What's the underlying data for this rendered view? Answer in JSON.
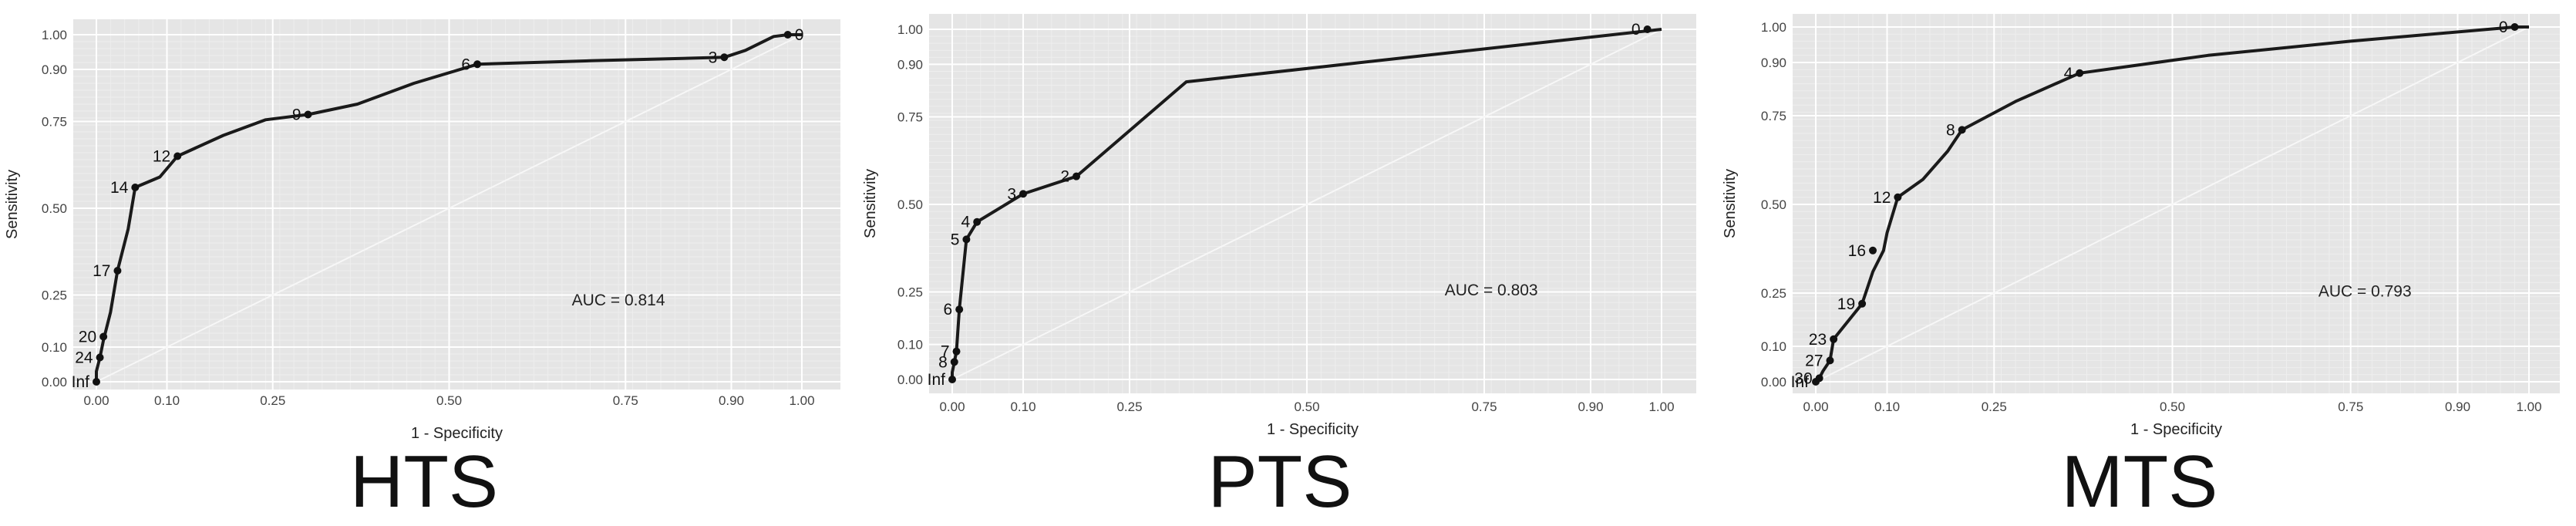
{
  "chart_data": [
    {
      "type": "line",
      "panel_title": "HTS",
      "xlabel": "1 - Specificity",
      "ylabel": "Sensitivity",
      "xlim": [
        0,
        1
      ],
      "ylim": [
        0,
        1
      ],
      "x_ticks": [
        "0.00",
        "0.10",
        "0.25",
        "0.50",
        "0.75",
        "0.90",
        "1.00"
      ],
      "y_ticks": [
        "0.00",
        "0.10",
        "0.25",
        "0.50",
        "0.75",
        "0.90",
        "1.00"
      ],
      "x_tick_values": [
        0,
        0.1,
        0.25,
        0.5,
        0.75,
        0.9,
        1
      ],
      "y_tick_values": [
        0,
        0.1,
        0.25,
        0.5,
        0.75,
        0.9,
        1
      ],
      "grid": true,
      "diagonal_reference": true,
      "annotation": "AUC = 0.814",
      "curve": [
        [
          0,
          0
        ],
        [
          0,
          0.03
        ],
        [
          0.005,
          0.07
        ],
        [
          0.01,
          0.12
        ],
        [
          0.02,
          0.2
        ],
        [
          0.03,
          0.32
        ],
        [
          0.045,
          0.44
        ],
        [
          0.055,
          0.56
        ],
        [
          0.09,
          0.59
        ],
        [
          0.115,
          0.65
        ],
        [
          0.18,
          0.71
        ],
        [
          0.24,
          0.755
        ],
        [
          0.3,
          0.77
        ],
        [
          0.37,
          0.8
        ],
        [
          0.45,
          0.86
        ],
        [
          0.54,
          0.915
        ],
        [
          0.7,
          0.925
        ],
        [
          0.89,
          0.935
        ],
        [
          0.92,
          0.955
        ],
        [
          0.94,
          0.975
        ],
        [
          0.96,
          0.995
        ],
        [
          0.98,
          1
        ],
        [
          1,
          1
        ]
      ],
      "points": [
        {
          "label": "Inf",
          "x": 0.0,
          "y": 0.0
        },
        {
          "label": "24",
          "x": 0.005,
          "y": 0.07
        },
        {
          "label": "20",
          "x": 0.01,
          "y": 0.13
        },
        {
          "label": "17",
          "x": 0.03,
          "y": 0.32
        },
        {
          "label": "14",
          "x": 0.055,
          "y": 0.56
        },
        {
          "label": "12",
          "x": 0.115,
          "y": 0.65
        },
        {
          "label": "9",
          "x": 0.3,
          "y": 0.77
        },
        {
          "label": "6",
          "x": 0.54,
          "y": 0.915
        },
        {
          "label": "3",
          "x": 0.89,
          "y": 0.935
        },
        {
          "label": "0",
          "x": 0.98,
          "y": 1.0
        }
      ]
    },
    {
      "type": "line",
      "panel_title": "PTS",
      "xlabel": "1 - Specificity",
      "ylabel": "Sensitivity",
      "xlim": [
        0,
        1
      ],
      "ylim": [
        0,
        1
      ],
      "x_ticks": [
        "0.00",
        "0.10",
        "0.25",
        "0.50",
        "0.75",
        "0.90",
        "1.00"
      ],
      "y_ticks": [
        "0.00",
        "0.10",
        "0.25",
        "0.50",
        "0.75",
        "0.90",
        "1.00"
      ],
      "x_tick_values": [
        0,
        0.1,
        0.25,
        0.5,
        0.75,
        0.9,
        1
      ],
      "y_tick_values": [
        0,
        0.1,
        0.25,
        0.5,
        0.75,
        0.9,
        1
      ],
      "grid": true,
      "diagonal_reference": true,
      "annotation": "AUC = 0.803",
      "curve": [
        [
          0,
          0
        ],
        [
          0,
          0.02
        ],
        [
          0.003,
          0.05
        ],
        [
          0.006,
          0.08
        ],
        [
          0.01,
          0.2
        ],
        [
          0.02,
          0.4
        ],
        [
          0.035,
          0.45
        ],
        [
          0.1,
          0.53
        ],
        [
          0.175,
          0.58
        ],
        [
          0.33,
          0.85
        ],
        [
          1,
          1
        ]
      ],
      "points": [
        {
          "label": "Inf",
          "x": 0.0,
          "y": 0.0
        },
        {
          "label": "8",
          "x": 0.003,
          "y": 0.05
        },
        {
          "label": "7",
          "x": 0.006,
          "y": 0.08
        },
        {
          "label": "6",
          "x": 0.01,
          "y": 0.2
        },
        {
          "label": "5",
          "x": 0.02,
          "y": 0.4
        },
        {
          "label": "4",
          "x": 0.035,
          "y": 0.45
        },
        {
          "label": "3",
          "x": 0.1,
          "y": 0.53
        },
        {
          "label": "2",
          "x": 0.175,
          "y": 0.58
        },
        {
          "label": "0",
          "x": 0.98,
          "y": 1.0
        }
      ]
    },
    {
      "type": "line",
      "panel_title": "MTS",
      "xlabel": "1 - Specificity",
      "ylabel": "Sensitivity",
      "xlim": [
        0,
        1
      ],
      "ylim": [
        0,
        1
      ],
      "x_ticks": [
        "0.00",
        "0.10",
        "0.25",
        "0.50",
        "0.75",
        "0.90",
        "1.00"
      ],
      "y_ticks": [
        "0.00",
        "0.10",
        "0.25",
        "0.50",
        "0.75",
        "0.90",
        "1.00"
      ],
      "x_tick_values": [
        0,
        0.1,
        0.25,
        0.5,
        0.75,
        0.9,
        1
      ],
      "y_tick_values": [
        0,
        0.1,
        0.25,
        0.5,
        0.75,
        0.9,
        1
      ],
      "grid": true,
      "diagonal_reference": true,
      "annotation": "AUC = 0.793",
      "curve": [
        [
          0,
          0
        ],
        [
          0.005,
          0.01
        ],
        [
          0.01,
          0.03
        ],
        [
          0.02,
          0.06
        ],
        [
          0.025,
          0.12
        ],
        [
          0.065,
          0.22
        ],
        [
          0.08,
          0.31
        ],
        [
          0.095,
          0.37
        ],
        [
          0.1,
          0.42
        ],
        [
          0.115,
          0.52
        ],
        [
          0.15,
          0.57
        ],
        [
          0.185,
          0.65
        ],
        [
          0.205,
          0.71
        ],
        [
          0.28,
          0.79
        ],
        [
          0.37,
          0.87
        ],
        [
          0.55,
          0.92
        ],
        [
          0.75,
          0.96
        ],
        [
          0.98,
          1
        ],
        [
          1,
          1
        ]
      ],
      "points": [
        {
          "label": "Inf",
          "x": 0.0,
          "y": 0.0
        },
        {
          "label": "30",
          "x": 0.005,
          "y": 0.01
        },
        {
          "label": "27",
          "x": 0.02,
          "y": 0.06
        },
        {
          "label": "23",
          "x": 0.025,
          "y": 0.12
        },
        {
          "label": "19",
          "x": 0.065,
          "y": 0.22
        },
        {
          "label": "16",
          "x": 0.08,
          "y": 0.37
        },
        {
          "label": "12",
          "x": 0.115,
          "y": 0.52
        },
        {
          "label": "8",
          "x": 0.205,
          "y": 0.71
        },
        {
          "label": "4",
          "x": 0.37,
          "y": 0.87
        },
        {
          "label": "0",
          "x": 0.98,
          "y": 1.0
        }
      ]
    }
  ]
}
